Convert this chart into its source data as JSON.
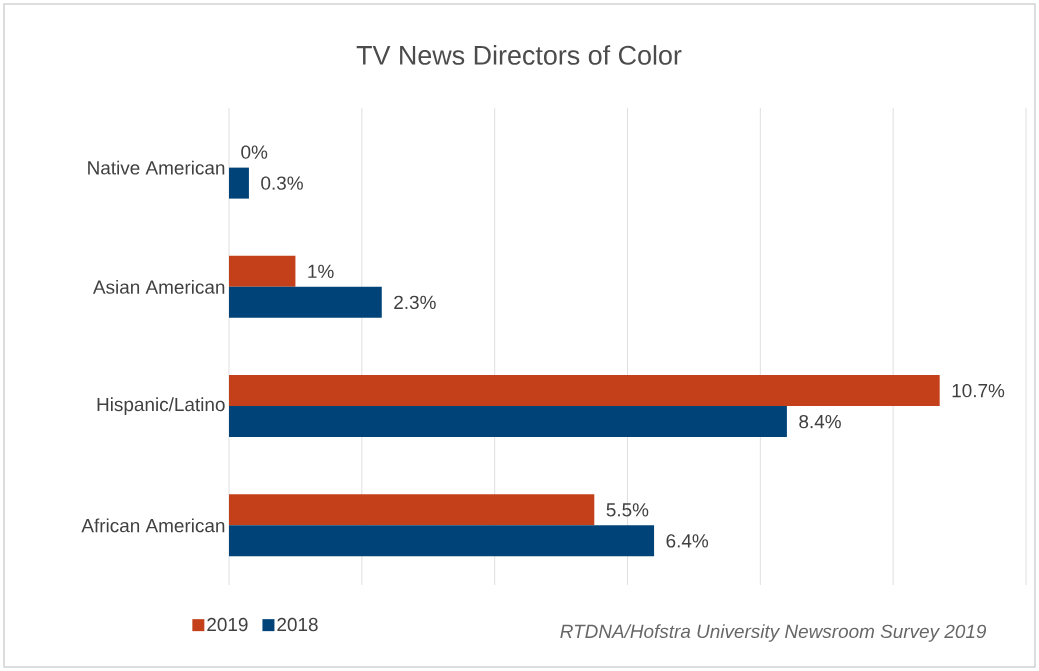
{
  "chart_data": {
    "type": "bar",
    "orientation": "horizontal",
    "title": "TV News Directors of Color",
    "categories": [
      "Native American",
      "Asian American",
      "Hispanic/Latino",
      "African American"
    ],
    "series": [
      {
        "name": "2019",
        "color": "#c3401a",
        "values": [
          0,
          1,
          10.7,
          5.5
        ],
        "value_labels": [
          "0%",
          "1%",
          "10.7%",
          "5.5%"
        ]
      },
      {
        "name": "2018",
        "color": "#004379",
        "values": [
          0.3,
          2.3,
          8.4,
          6.4
        ],
        "value_labels": [
          "0.3%",
          "2.3%",
          "8.4%",
          "6.4%"
        ]
      }
    ],
    "xlim": [
      0,
      12
    ],
    "xticks": [
      {
        "value": 0,
        "label": null
      },
      {
        "value": 2,
        "label": null
      },
      {
        "value": 4,
        "label": null
      },
      {
        "value": 6,
        "label": null
      },
      {
        "value": 8,
        "label": null
      },
      {
        "value": 10,
        "label": null
      },
      {
        "value": 12,
        "label": null
      }
    ],
    "tick_labels": "y",
    "grid": "x",
    "legend": "bottom left",
    "annotations": [
      "*RTDNA/Hofstra University Newsroom Survey 2019*"
    ]
  }
}
